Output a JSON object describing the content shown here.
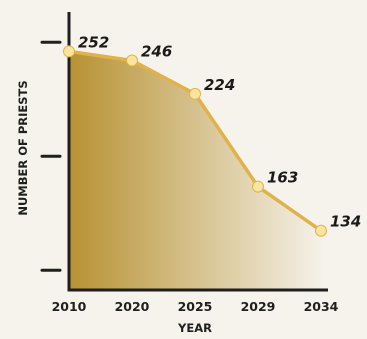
{
  "chart_data": {
    "type": "area",
    "title": "",
    "xlabel": "YEAR",
    "ylabel": "NUMBER OF PRIESTS",
    "categories": [
      "2010",
      "2020",
      "2025",
      "2029",
      "2034"
    ],
    "values": [
      252,
      246,
      224,
      163,
      134
    ],
    "data_labels": [
      "252",
      "246",
      "224",
      "163",
      "134"
    ],
    "ylim": [
      95,
      270
    ],
    "y_ticks": [
      108,
      183,
      258
    ],
    "y_tick_labels_shown": false,
    "grid": false,
    "legend": "none",
    "colors": {
      "line": "#e2b24a",
      "marker": "#fbe3a0",
      "fill_start": "#b79233",
      "fill_end": "#f5f1e8",
      "axis": "#1f1f1f",
      "background": "#f5f3ec"
    }
  }
}
